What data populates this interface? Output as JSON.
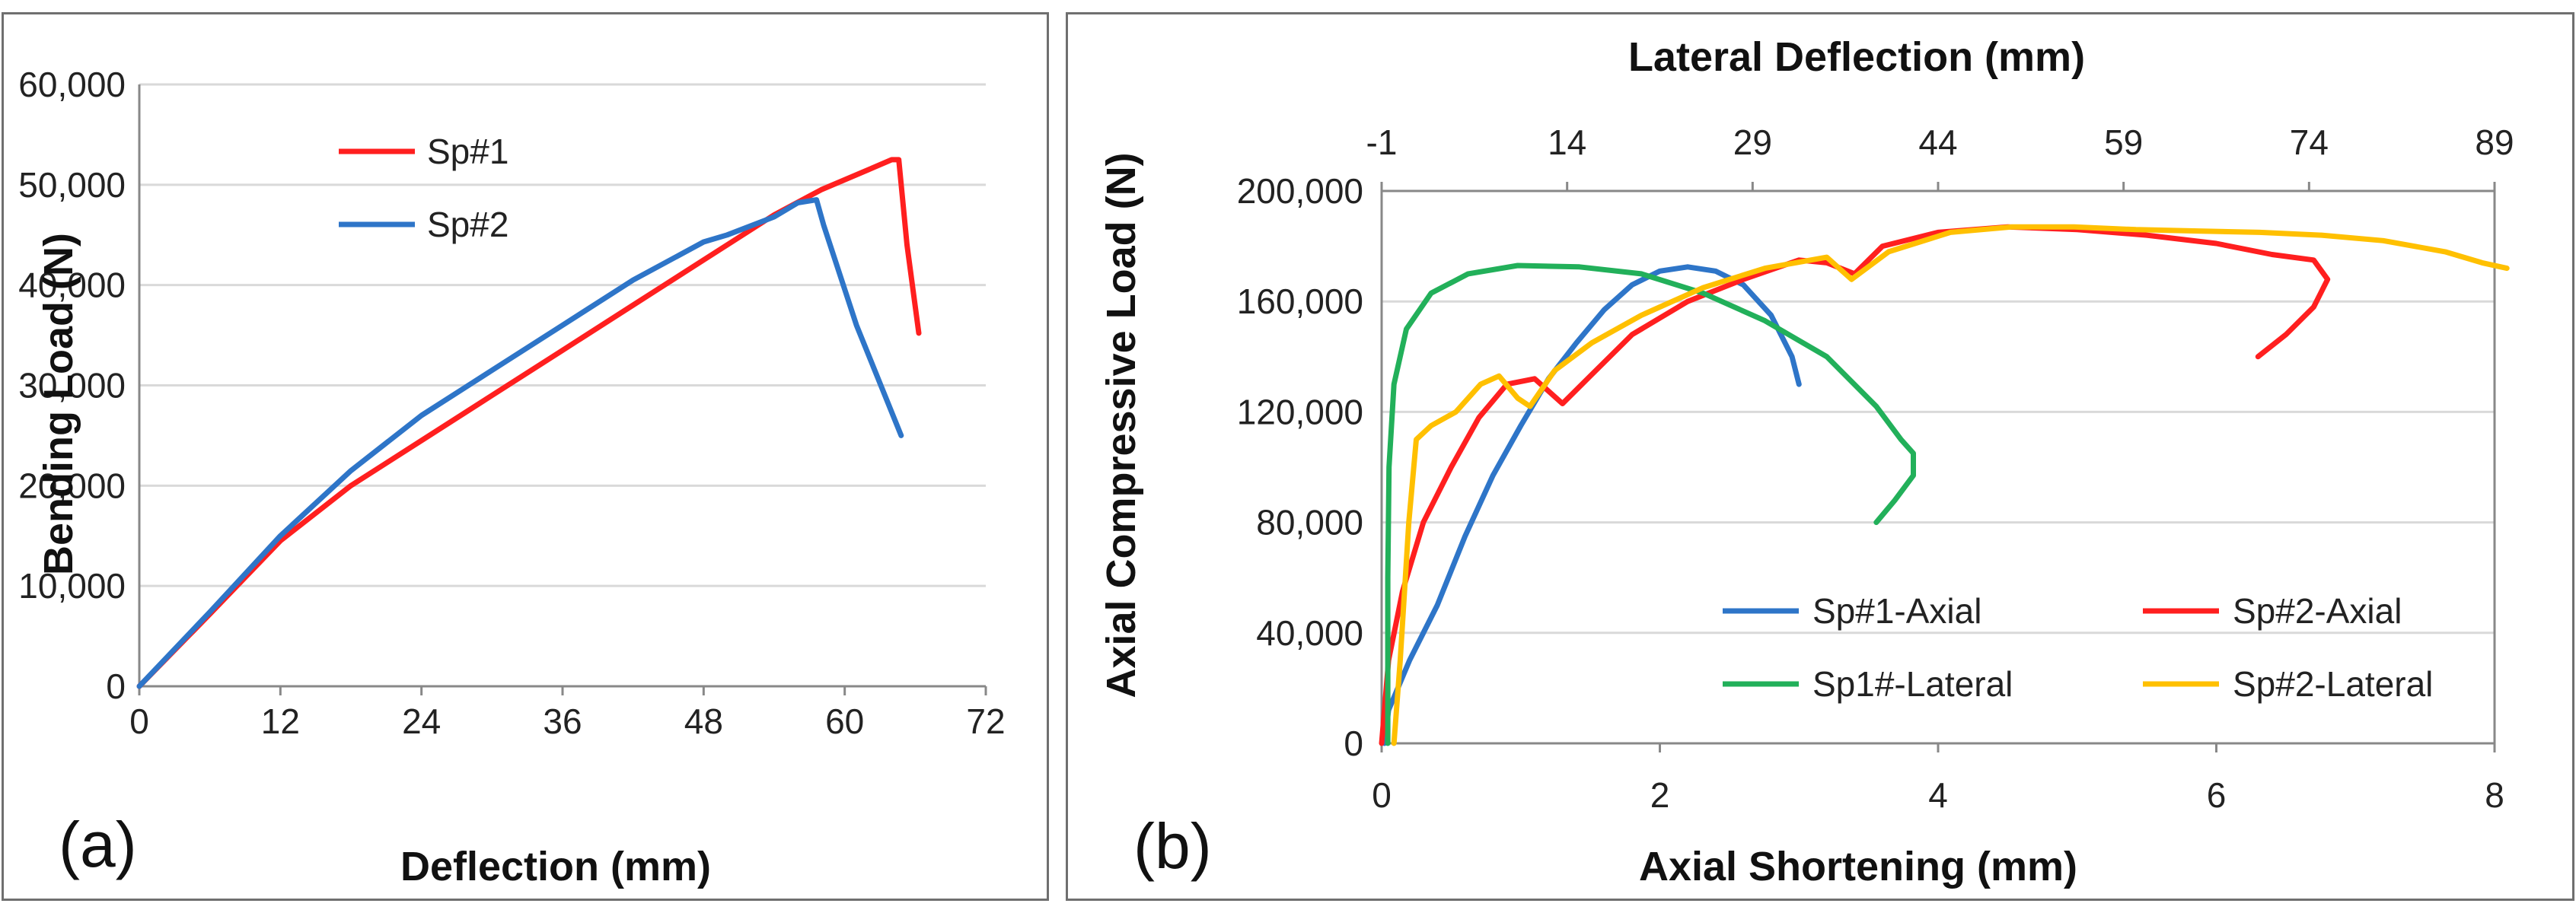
{
  "chart_data": [
    {
      "type": "line",
      "panel_label": "(a)",
      "xlabel": "Deflection (mm)",
      "ylabel": "Bending Load (N)",
      "xlim": [
        0,
        72
      ],
      "ylim": [
        0,
        60000
      ],
      "xticks": [
        0,
        12,
        24,
        36,
        48,
        60,
        72
      ],
      "yticks": [
        0,
        10000,
        20000,
        30000,
        40000,
        50000,
        60000
      ],
      "xtick_labels": [
        "0",
        "12",
        "24",
        "36",
        "48",
        "60",
        "72"
      ],
      "ytick_labels": [
        "0",
        "10,000",
        "20,000",
        "30,000",
        "40,000",
        "50,000",
        "60,000"
      ],
      "grid": "horizontal",
      "legend_position": "top-left",
      "series": [
        {
          "name": "Sp#1",
          "color": "#ff1f1f",
          "points": [
            [
              0,
              0
            ],
            [
              6,
              7200
            ],
            [
              12,
              14500
            ],
            [
              18,
              20000
            ],
            [
              24,
              24500
            ],
            [
              30,
              29000
            ],
            [
              36,
              33500
            ],
            [
              42,
              38000
            ],
            [
              48,
              42500
            ],
            [
              54,
              47000
            ],
            [
              58,
              49500
            ],
            [
              62,
              51500
            ],
            [
              64,
              52500
            ],
            [
              64.6,
              52500
            ],
            [
              65.3,
              44000
            ],
            [
              66.3,
              35200
            ]
          ]
        },
        {
          "name": "Sp#2",
          "color": "#2e75c8",
          "points": [
            [
              0,
              0
            ],
            [
              6,
              7400
            ],
            [
              12,
              15000
            ],
            [
              18,
              21500
            ],
            [
              24,
              27000
            ],
            [
              30,
              31500
            ],
            [
              36,
              36000
            ],
            [
              42,
              40500
            ],
            [
              48,
              44300
            ],
            [
              50,
              45000
            ],
            [
              54,
              46800
            ],
            [
              56,
              48200
            ],
            [
              57.6,
              48500
            ],
            [
              58.2,
              46000
            ],
            [
              61,
              36000
            ],
            [
              64.8,
              25000
            ]
          ]
        }
      ]
    },
    {
      "type": "line",
      "panel_label": "(b)",
      "xlabel": "Axial Shortening (mm)",
      "x2label": "Lateral Deflection (mm)",
      "ylabel": "Axial Compressive Load (N)",
      "xlim": [
        0,
        8
      ],
      "x2lim": [
        -1,
        89
      ],
      "ylim": [
        0,
        200000
      ],
      "xticks": [
        0,
        2,
        4,
        6,
        8
      ],
      "x2ticks": [
        -1,
        14,
        29,
        44,
        59,
        74,
        89
      ],
      "yticks": [
        0,
        40000,
        80000,
        120000,
        160000,
        200000
      ],
      "xtick_labels": [
        "0",
        "2",
        "4",
        "6",
        "8"
      ],
      "x2tick_labels": [
        "-1",
        "14",
        "29",
        "44",
        "59",
        "74",
        "89"
      ],
      "ytick_labels": [
        "0",
        "40,000",
        "80,000",
        "120,000",
        "160,000",
        "200,000"
      ],
      "grid": "horizontal",
      "legend_position": "bottom-right",
      "series": [
        {
          "name": "Sp#1-Axial",
          "color": "#2e75c8",
          "x_axis": "bottom",
          "points": [
            [
              0.02,
              0
            ],
            [
              0.05,
              12000
            ],
            [
              0.2,
              30000
            ],
            [
              0.4,
              50000
            ],
            [
              0.6,
              75000
            ],
            [
              0.8,
              97000
            ],
            [
              1.0,
              115000
            ],
            [
              1.2,
              132000
            ],
            [
              1.4,
              145000
            ],
            [
              1.6,
              157000
            ],
            [
              1.8,
              166000
            ],
            [
              2.0,
              171000
            ],
            [
              2.2,
              172500
            ],
            [
              2.4,
              171000
            ],
            [
              2.6,
              166000
            ],
            [
              2.8,
              155000
            ],
            [
              2.95,
              140000
            ],
            [
              3.0,
              130000
            ]
          ]
        },
        {
          "name": "Sp#2-Axial",
          "color": "#ff1f1f",
          "x_axis": "bottom",
          "points": [
            [
              0.0,
              0
            ],
            [
              0.05,
              30000
            ],
            [
              0.15,
              55000
            ],
            [
              0.3,
              80000
            ],
            [
              0.5,
              100000
            ],
            [
              0.7,
              118000
            ],
            [
              0.9,
              130000
            ],
            [
              1.1,
              132000
            ],
            [
              1.3,
              123000
            ],
            [
              1.5,
              133000
            ],
            [
              1.8,
              148000
            ],
            [
              2.2,
              160000
            ],
            [
              2.6,
              168000
            ],
            [
              3.0,
              175000
            ],
            [
              3.2,
              174000
            ],
            [
              3.4,
              170000
            ],
            [
              3.6,
              180000
            ],
            [
              4.0,
              185000
            ],
            [
              4.5,
              187000
            ],
            [
              5.0,
              186000
            ],
            [
              5.5,
              184000
            ],
            [
              6.0,
              181000
            ],
            [
              6.4,
              177000
            ],
            [
              6.7,
              175000
            ],
            [
              6.8,
              168000
            ],
            [
              6.7,
              158000
            ],
            [
              6.5,
              148000
            ],
            [
              6.3,
              140000
            ]
          ]
        },
        {
          "name": "Sp1#-Lateral",
          "color": "#22b05a",
          "x_axis": "top",
          "points": [
            [
              -0.5,
              0
            ],
            [
              -0.5,
              60000
            ],
            [
              -0.4,
              100000
            ],
            [
              0.0,
              130000
            ],
            [
              1.0,
              150000
            ],
            [
              3.0,
              163000
            ],
            [
              6.0,
              170000
            ],
            [
              10.0,
              173000
            ],
            [
              15.0,
              172500
            ],
            [
              20.0,
              170000
            ],
            [
              25.0,
              163000
            ],
            [
              30.0,
              153000
            ],
            [
              35.0,
              140000
            ],
            [
              39.0,
              122000
            ],
            [
              41.0,
              110000
            ],
            [
              42.0,
              105000
            ],
            [
              42.0,
              97000
            ],
            [
              40.5,
              88000
            ],
            [
              39.0,
              80000
            ]
          ]
        },
        {
          "name": "Sp#2-Lateral",
          "color": "#ffc000",
          "x_axis": "top",
          "points": [
            [
              0.0,
              0
            ],
            [
              0.5,
              30000
            ],
            [
              1.2,
              80000
            ],
            [
              1.8,
              110000
            ],
            [
              3.0,
              115000
            ],
            [
              5.0,
              120000
            ],
            [
              7.0,
              130000
            ],
            [
              8.5,
              133000
            ],
            [
              10.0,
              125000
            ],
            [
              11.0,
              122000
            ],
            [
              13.0,
              135000
            ],
            [
              16.0,
              145000
            ],
            [
              20.0,
              155000
            ],
            [
              25.0,
              165000
            ],
            [
              30.0,
              172000
            ],
            [
              35.0,
              176000
            ],
            [
              37.0,
              168000
            ],
            [
              40.0,
              178000
            ],
            [
              45.0,
              185000
            ],
            [
              50.0,
              187000
            ],
            [
              55.0,
              187000
            ],
            [
              60.0,
              186000
            ],
            [
              65.0,
              185500
            ],
            [
              70.0,
              185000
            ],
            [
              75.0,
              184000
            ],
            [
              80.0,
              182000
            ],
            [
              85.0,
              178000
            ],
            [
              88.0,
              174000
            ],
            [
              90.0,
              172000
            ]
          ]
        }
      ]
    }
  ]
}
